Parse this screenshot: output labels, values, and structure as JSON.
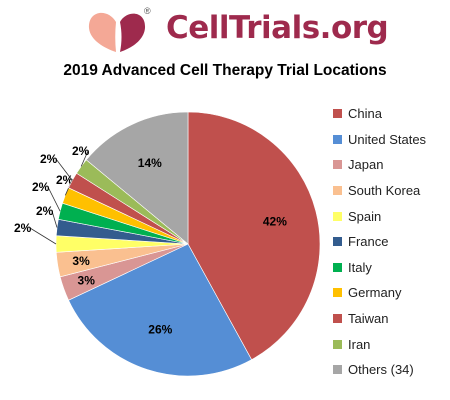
{
  "logo": {
    "text": "CellTrials.org",
    "registered_mark": "®"
  },
  "chart_data": {
    "type": "pie",
    "title": "2019 Advanced Cell Therapy Trial Locations",
    "legend_position": "right",
    "slices": [
      {
        "label": "China",
        "value": 42,
        "data_label": "42%",
        "color": "#c0504d"
      },
      {
        "label": "United States",
        "value": 26,
        "data_label": "26%",
        "color": "#558ed5"
      },
      {
        "label": "Japan",
        "value": 3,
        "data_label": "3%",
        "color": "#d99694"
      },
      {
        "label": "South Korea",
        "value": 3,
        "data_label": "3%",
        "color": "#fac090"
      },
      {
        "label": "Spain",
        "value": 2,
        "data_label": "2%",
        "color": "#ffff66"
      },
      {
        "label": "France",
        "value": 2,
        "data_label": "2%",
        "color": "#335c8e"
      },
      {
        "label": "Italy",
        "value": 2,
        "data_label": "2%",
        "color": "#00b050"
      },
      {
        "label": "Germany",
        "value": 2,
        "data_label": "2%",
        "color": "#ffc000"
      },
      {
        "label": "Taiwan",
        "value": 2,
        "data_label": "2%",
        "color": "#c0504d"
      },
      {
        "label": "Iran",
        "value": 2,
        "data_label": "2%",
        "color": "#9bbb59"
      },
      {
        "label": "Others (34)",
        "value": 14,
        "data_label": "14%",
        "color": "#a6a6a6"
      }
    ]
  }
}
